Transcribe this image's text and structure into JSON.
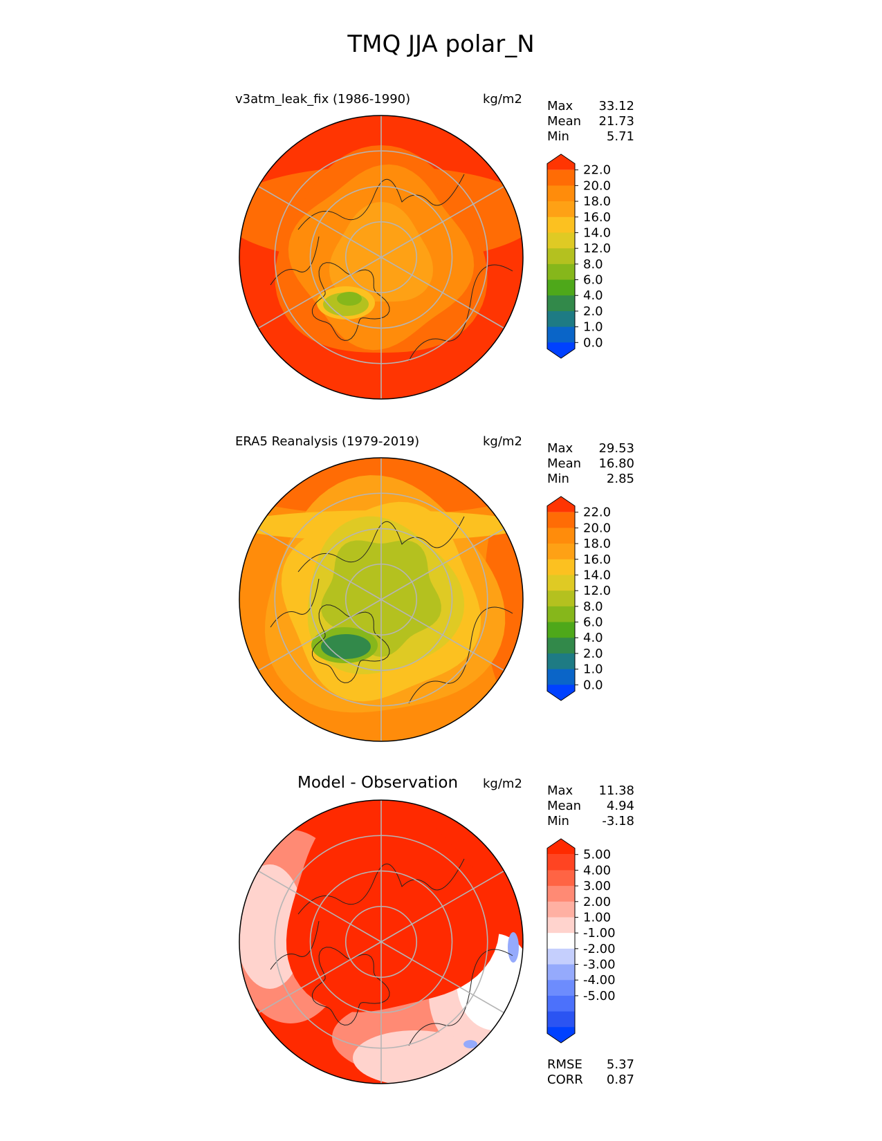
{
  "title": "TMQ JJA polar_N",
  "colors": {
    "seq": [
      "#0041ff",
      "#0a65c8",
      "#1e7b84",
      "#32894a",
      "#4ea81a",
      "#86b71b",
      "#b4c11f",
      "#dfca24",
      "#fcc120",
      "#fea115",
      "#ff8c0b",
      "#ff6c05",
      "#ff3502"
    ],
    "diff": [
      "#0041ff",
      "#2b54f2",
      "#4c71fb",
      "#6d8cfd",
      "#95aafc",
      "#c5cffd",
      "#ffffff",
      "#ffd3cd",
      "#ffb0a2",
      "#ff8a74",
      "#ff6444",
      "#ff4422",
      "#ff2a00"
    ],
    "grid": "#b5b5b5",
    "coast": "#222222"
  },
  "panels": [
    {
      "id": "test",
      "title": "v3atm_leak_fix (1986-1990)",
      "units": "kg/m2",
      "stats": [
        {
          "label": "Max",
          "value": "33.12"
        },
        {
          "label": "Mean",
          "value": "21.73"
        },
        {
          "label": "Min",
          "value": "5.71"
        }
      ],
      "colorbar": {
        "ticks": [
          "22.0",
          "20.0",
          "18.0",
          "16.0",
          "14.0",
          "12.0",
          "8.0",
          "6.0",
          "4.0",
          "2.0",
          "1.0",
          "0.0"
        ]
      }
    },
    {
      "id": "ref",
      "title": "ERA5 Reanalysis (1979-2019)",
      "units": "kg/m2",
      "stats": [
        {
          "label": "Max",
          "value": "29.53"
        },
        {
          "label": "Mean",
          "value": "16.80"
        },
        {
          "label": "Min",
          "value": "2.85"
        }
      ],
      "colorbar": {
        "ticks": [
          "22.0",
          "20.0",
          "18.0",
          "16.0",
          "14.0",
          "12.0",
          "8.0",
          "6.0",
          "4.0",
          "2.0",
          "1.0",
          "0.0"
        ]
      }
    },
    {
      "id": "diff",
      "title": "Model - Observation",
      "units": "kg/m2",
      "stats": [
        {
          "label": "Max",
          "value": "11.38"
        },
        {
          "label": "Mean",
          "value": "4.94"
        },
        {
          "label": "Min",
          "value": "-3.18"
        }
      ],
      "colorbar": {
        "ticks": [
          "5.00",
          "4.00",
          "3.00",
          "2.00",
          "1.00",
          "-1.00",
          "-2.00",
          "-3.00",
          "-4.00",
          "-5.00"
        ]
      },
      "metrics": [
        {
          "label": "RMSE",
          "value": "5.37"
        },
        {
          "label": "CORR",
          "value": "0.87"
        }
      ]
    }
  ],
  "chart_data": [
    {
      "type": "heatmap",
      "projection": "north polar stereographic",
      "title": "v3atm_leak_fix (1986-1990)",
      "units": "kg/m2",
      "stats": {
        "max": 33.12,
        "mean": 21.73,
        "min": 5.71
      },
      "levels": [
        0,
        1,
        2,
        4,
        6,
        8,
        12,
        14,
        16,
        18,
        20,
        22
      ]
    },
    {
      "type": "heatmap",
      "projection": "north polar stereographic",
      "title": "ERA5 Reanalysis (1979-2019)",
      "units": "kg/m2",
      "stats": {
        "max": 29.53,
        "mean": 16.8,
        "min": 2.85
      },
      "levels": [
        0,
        1,
        2,
        4,
        6,
        8,
        12,
        14,
        16,
        18,
        20,
        22
      ]
    },
    {
      "type": "heatmap",
      "projection": "north polar stereographic",
      "title": "Model - Observation",
      "units": "kg/m2",
      "stats": {
        "max": 11.38,
        "mean": 4.94,
        "min": -3.18
      },
      "levels": [
        -5,
        -4,
        -3,
        -2,
        -1,
        1,
        2,
        3,
        4,
        5
      ],
      "metrics": {
        "rmse": 5.37,
        "corr": 0.87
      }
    }
  ]
}
